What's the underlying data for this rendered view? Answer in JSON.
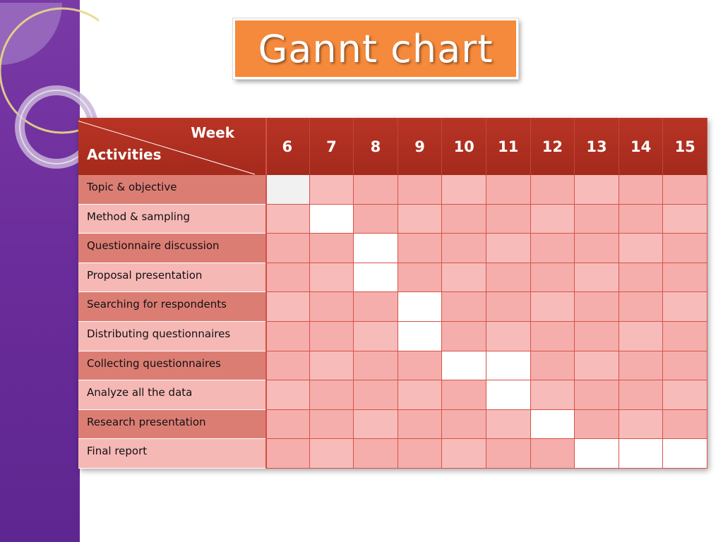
{
  "title": "Gannt chart",
  "chart_data": {
    "type": "table",
    "title": "Gannt chart",
    "header_week_label": "Week",
    "header_activities_label": "Activities",
    "weeks": [
      "6",
      "7",
      "8",
      "9",
      "10",
      "11",
      "12",
      "13",
      "14",
      "15"
    ],
    "activities": [
      {
        "name": "Topic & objective",
        "weeks": [
          6
        ]
      },
      {
        "name": "Method & sampling",
        "weeks": [
          7
        ]
      },
      {
        "name": "Questionnaire discussion",
        "weeks": [
          8
        ]
      },
      {
        "name": "Proposal presentation",
        "weeks": [
          8
        ]
      },
      {
        "name": "Searching for respondents",
        "weeks": [
          9
        ]
      },
      {
        "name": "Distributing questionnaires",
        "weeks": [
          9
        ]
      },
      {
        "name": "Collecting questionnaires",
        "weeks": [
          10,
          11
        ]
      },
      {
        "name": "Analyze all the data",
        "weeks": [
          11
        ]
      },
      {
        "name": "Research presentation",
        "weeks": [
          12
        ]
      },
      {
        "name": "Final report",
        "weeks": [
          13,
          14,
          15
        ]
      }
    ]
  },
  "colors": {
    "sidebar": "#6a2c9a",
    "title_bg": "#f58a3c",
    "header_bg": "#a52a1c",
    "activity_dark": "#dc7d74",
    "activity_light": "#f6b8b5",
    "grid_cell": "#f5aeab",
    "active_cell": "#ffffff"
  }
}
